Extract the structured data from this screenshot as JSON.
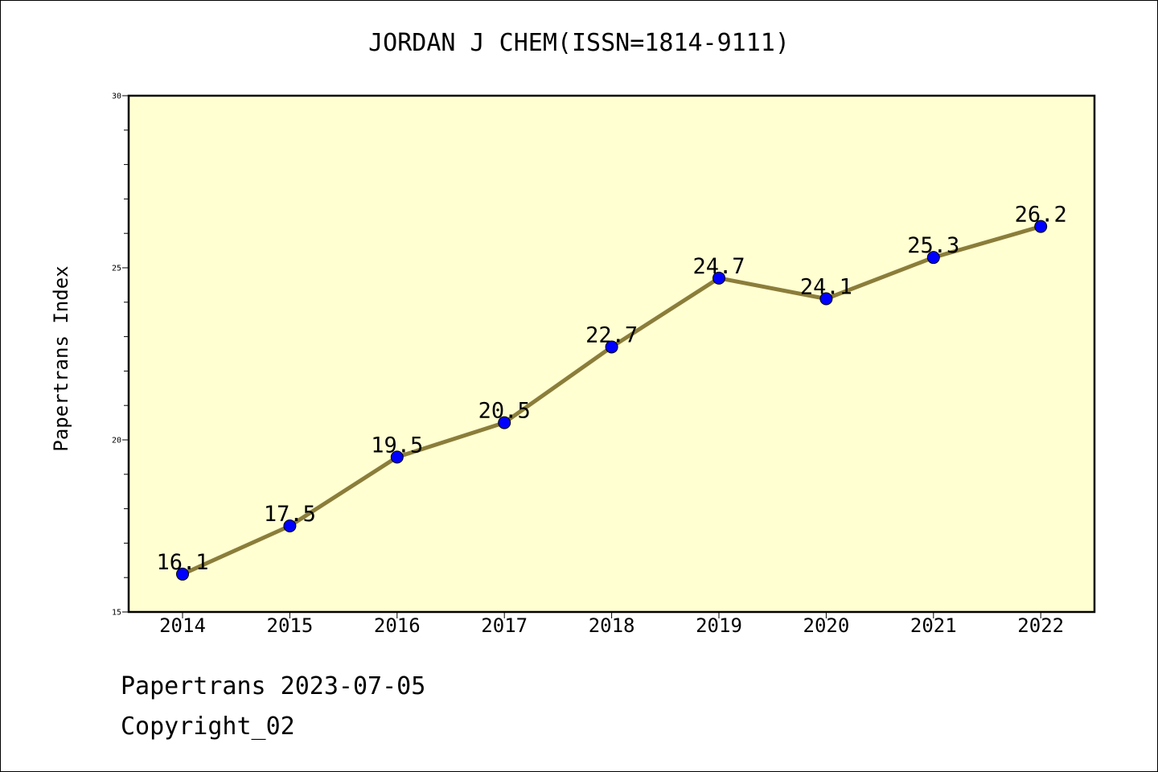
{
  "chart_data": {
    "type": "line",
    "title": "JORDAN J CHEM(ISSN=1814-9111)",
    "ylabel": "Papertrans Index",
    "xlabel": "",
    "categories": [
      "2014",
      "2015",
      "2016",
      "2017",
      "2018",
      "2019",
      "2020",
      "2021",
      "2022"
    ],
    "values": [
      16.1,
      17.5,
      19.5,
      20.5,
      22.7,
      24.7,
      24.1,
      25.3,
      26.2
    ],
    "data_labels": [
      "16.1",
      "17.5",
      "19.5",
      "20.5",
      "22.7",
      "24.7",
      "24.1",
      "25.3",
      "26.2"
    ],
    "ylim": [
      15,
      30
    ],
    "y_ticks": [
      "15",
      "20",
      "25",
      "30"
    ],
    "grid": false,
    "colors": {
      "plot_background": "#ffffd2",
      "line": "#8b7d3a",
      "marker": "#0000ff"
    }
  },
  "footer": {
    "line1": "Papertrans 2023-07-05",
    "line2": "Copyright_02"
  }
}
